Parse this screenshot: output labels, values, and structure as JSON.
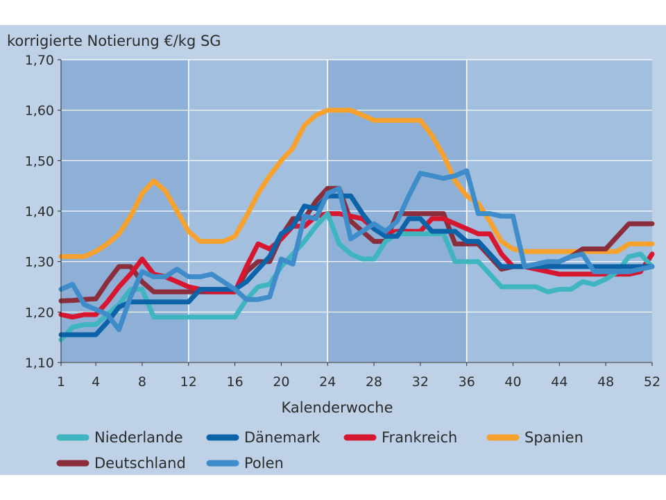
{
  "chart_data": {
    "type": "line",
    "title": "korrigierte Notierung €/kg SG",
    "xlabel": "Kalenderwoche",
    "ylabel": "",
    "xlim": [
      1,
      52
    ],
    "ylim": [
      1.1,
      1.7
    ],
    "x_ticks": [
      1,
      4,
      8,
      12,
      16,
      20,
      24,
      28,
      32,
      36,
      40,
      44,
      48,
      52
    ],
    "x_tick_labels": [
      "1",
      "4",
      "8",
      "12",
      "16",
      "20",
      "24",
      "28",
      "32",
      "36",
      "40",
      "44",
      "48",
      "52"
    ],
    "y_ticks": [
      1.1,
      1.2,
      1.3,
      1.4,
      1.5,
      1.6,
      1.7
    ],
    "y_tick_labels": [
      "1,10",
      "1,20",
      "1,30",
      "1,40",
      "1,50",
      "1,60",
      "1,70"
    ],
    "grid": true,
    "legend_position": "bottom",
    "x": [
      1,
      2,
      3,
      4,
      5,
      6,
      7,
      8,
      9,
      10,
      11,
      12,
      13,
      14,
      15,
      16,
      17,
      18,
      19,
      20,
      21,
      22,
      23,
      24,
      25,
      26,
      27,
      28,
      29,
      30,
      31,
      32,
      33,
      34,
      35,
      36,
      37,
      38,
      39,
      40,
      41,
      42,
      43,
      44,
      45,
      46,
      47,
      48,
      49,
      50,
      51,
      52
    ],
    "series": [
      {
        "name": "Spanien",
        "color": "#f7a12f",
        "values": [
          1.31,
          1.31,
          1.31,
          1.32,
          1.335,
          1.355,
          1.39,
          1.435,
          1.46,
          1.44,
          1.4,
          1.36,
          1.34,
          1.34,
          1.34,
          1.35,
          1.39,
          1.435,
          1.47,
          1.5,
          1.525,
          1.57,
          1.59,
          1.6,
          1.6,
          1.6,
          1.59,
          1.58,
          1.58,
          1.58,
          1.58,
          1.58,
          1.55,
          1.51,
          1.46,
          1.43,
          1.415,
          1.38,
          1.34,
          1.325,
          1.32,
          1.32,
          1.32,
          1.32,
          1.32,
          1.32,
          1.32,
          1.32,
          1.32,
          1.335,
          1.335,
          1.335
        ]
      },
      {
        "name": "Deutschland",
        "color": "#8b2e3c",
        "values": [
          1.222,
          1.223,
          1.225,
          1.226,
          1.26,
          1.29,
          1.29,
          1.26,
          1.24,
          1.24,
          1.24,
          1.24,
          1.24,
          1.24,
          1.24,
          1.24,
          1.28,
          1.3,
          1.3,
          1.35,
          1.385,
          1.385,
          1.42,
          1.445,
          1.445,
          1.38,
          1.36,
          1.34,
          1.34,
          1.395,
          1.395,
          1.395,
          1.395,
          1.395,
          1.335,
          1.335,
          1.335,
          1.31,
          1.285,
          1.29,
          1.29,
          1.29,
          1.29,
          1.3,
          1.31,
          1.325,
          1.325,
          1.325,
          1.35,
          1.375,
          1.375,
          1.375
        ]
      },
      {
        "name": "Frankreich",
        "color": "#d7172f",
        "values": [
          1.195,
          1.19,
          1.195,
          1.195,
          1.22,
          1.25,
          1.275,
          1.305,
          1.275,
          1.27,
          1.26,
          1.25,
          1.245,
          1.24,
          1.24,
          1.24,
          1.29,
          1.335,
          1.325,
          1.345,
          1.37,
          1.37,
          1.39,
          1.395,
          1.395,
          1.39,
          1.385,
          1.365,
          1.355,
          1.36,
          1.36,
          1.36,
          1.385,
          1.385,
          1.375,
          1.365,
          1.355,
          1.355,
          1.315,
          1.29,
          1.29,
          1.285,
          1.28,
          1.275,
          1.275,
          1.275,
          1.275,
          1.275,
          1.275,
          1.275,
          1.28,
          1.315
        ]
      },
      {
        "name": "Niederlande",
        "color": "#3fb5c0",
        "values": [
          1.145,
          1.17,
          1.175,
          1.175,
          1.195,
          1.215,
          1.245,
          1.245,
          1.19,
          1.19,
          1.19,
          1.19,
          1.19,
          1.19,
          1.19,
          1.19,
          1.225,
          1.25,
          1.255,
          1.29,
          1.315,
          1.34,
          1.37,
          1.395,
          1.335,
          1.315,
          1.305,
          1.305,
          1.34,
          1.355,
          1.355,
          1.355,
          1.355,
          1.355,
          1.3,
          1.3,
          1.3,
          1.275,
          1.25,
          1.25,
          1.25,
          1.25,
          1.24,
          1.245,
          1.245,
          1.26,
          1.255,
          1.265,
          1.28,
          1.31,
          1.315,
          1.29
        ]
      },
      {
        "name": "Dänemark",
        "color": "#0d63a8",
        "values": [
          1.155,
          1.155,
          1.155,
          1.155,
          1.18,
          1.21,
          1.22,
          1.22,
          1.22,
          1.22,
          1.22,
          1.22,
          1.245,
          1.245,
          1.245,
          1.245,
          1.26,
          1.285,
          1.31,
          1.355,
          1.37,
          1.41,
          1.405,
          1.43,
          1.43,
          1.43,
          1.395,
          1.365,
          1.35,
          1.35,
          1.385,
          1.385,
          1.36,
          1.36,
          1.36,
          1.34,
          1.34,
          1.315,
          1.29,
          1.29,
          1.29,
          1.29,
          1.29,
          1.29,
          1.29,
          1.29,
          1.29,
          1.29,
          1.29,
          1.29,
          1.29,
          1.29
        ]
      },
      {
        "name": "Polen",
        "color": "#3f8cca",
        "values": [
          1.245,
          1.255,
          1.215,
          1.205,
          1.195,
          1.165,
          1.23,
          1.28,
          1.27,
          1.27,
          1.285,
          1.27,
          1.27,
          1.275,
          1.26,
          1.245,
          1.225,
          1.225,
          1.23,
          1.305,
          1.295,
          1.39,
          1.385,
          1.435,
          1.445,
          1.345,
          1.36,
          1.375,
          1.36,
          1.38,
          1.43,
          1.475,
          1.47,
          1.465,
          1.47,
          1.48,
          1.395,
          1.395,
          1.39,
          1.39,
          1.29,
          1.295,
          1.3,
          1.3,
          1.31,
          1.315,
          1.28,
          1.28,
          1.28,
          1.28,
          1.285,
          1.29
        ]
      }
    ],
    "legend": [
      {
        "name": "Niederlande",
        "color": "#3fb5c0"
      },
      {
        "name": "Dänemark",
        "color": "#0d63a8"
      },
      {
        "name": "Frankreich",
        "color": "#d7172f"
      },
      {
        "name": "Spanien",
        "color": "#f7a12f"
      },
      {
        "name": "Deutschland",
        "color": "#8b2e3c"
      },
      {
        "name": "Polen",
        "color": "#3f8cca"
      }
    ],
    "colors": {
      "panel": "#bed1e6",
      "plot_dark": "#8eb0d6",
      "plot_light": "#a2bfe0",
      "grid": "#ffffff"
    }
  }
}
